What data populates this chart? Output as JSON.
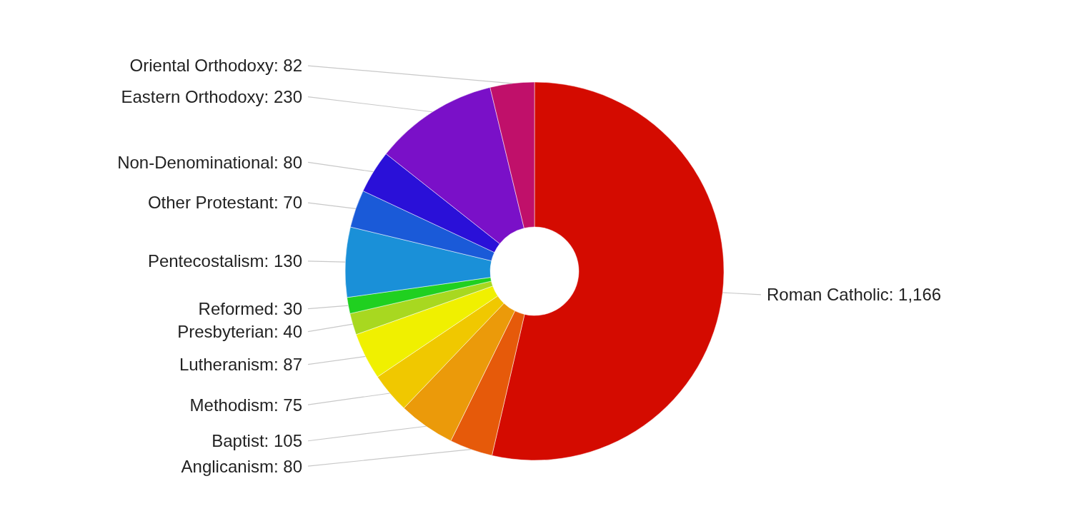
{
  "chart_data": {
    "type": "donut",
    "categories": [
      "Roman Catholic",
      "Anglicanism",
      "Baptist",
      "Methodism",
      "Lutheranism",
      "Presbyterian",
      "Reformed",
      "Pentecostalism",
      "Other Protestant",
      "Non-Denominational",
      "Eastern Orthodoxy",
      "Oriental Orthodoxy"
    ],
    "values": [
      1166,
      80,
      105,
      75,
      87,
      40,
      30,
      130,
      70,
      80,
      230,
      82
    ],
    "value_labels": [
      "1,166",
      "80",
      "105",
      "75",
      "87",
      "40",
      "30",
      "130",
      "70",
      "80",
      "230",
      "82"
    ],
    "colors": [
      "#d40b00",
      "#e65a0a",
      "#eb9a0a",
      "#f0c800",
      "#f0f000",
      "#a8d820",
      "#20d020",
      "#1a90d8",
      "#1a5ad8",
      "#2a10d8",
      "#7a10c8",
      "#c0106a"
    ]
  }
}
